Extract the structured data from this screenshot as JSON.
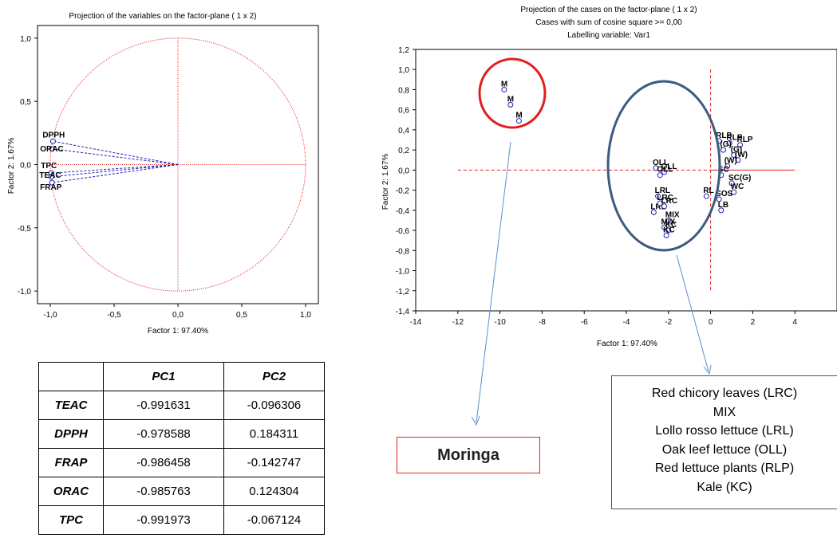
{
  "chart_data": [
    {
      "type": "scatter",
      "title": "Projection of the variables on the factor-plane (  1 x   2)",
      "xlabel": "Factor 1: 97.40%",
      "ylabel": "Factor 2: 1.67%",
      "xlim": [
        -1.1,
        1.1
      ],
      "ylim": [
        -1.1,
        1.1
      ],
      "xticks": [
        "-1,0",
        "-0,5",
        "0,0",
        "0,5",
        "1,0"
      ],
      "yticks": [
        "1,0",
        "0,5",
        "0,0",
        "-0,5",
        "-1,0"
      ],
      "unit_circle": true,
      "points": [
        {
          "label": "DPPH",
          "x": -0.978588,
          "y": 0.184311
        },
        {
          "label": "ORAC",
          "x": -0.985763,
          "y": 0.124304
        },
        {
          "label": "TPC",
          "x": -0.991973,
          "y": -0.067124
        },
        {
          "label": "TEAC",
          "x": -0.991631,
          "y": -0.096306
        },
        {
          "label": "FRAP",
          "x": -0.986458,
          "y": -0.142747
        }
      ]
    },
    {
      "type": "scatter",
      "title": "Projection of the cases on the factor-plane (  1 x   2)",
      "subtitle": "Cases with sum of cosine square >= 0,00",
      "subtitle2": "Labelling variable: Var1",
      "xlabel": "Factor 1: 97.40%",
      "ylabel": "Factor 2: 1.67%",
      "xlim": [
        -14,
        6
      ],
      "ylim": [
        -1.4,
        1.2
      ],
      "xticks": [
        "-14",
        "-12",
        "-10",
        "-8",
        "-6",
        "-4",
        "-2",
        "0",
        "2",
        "4"
      ],
      "yticks": [
        "1,2",
        "1,0",
        "0,8",
        "0,6",
        "0,4",
        "0,2",
        "0,0",
        "-0,2",
        "-0,4",
        "-0,6",
        "-0,8",
        "-1,0",
        "-1,2",
        "-1,4"
      ],
      "points": [
        {
          "label": "M",
          "x": -9.8,
          "y": 0.8
        },
        {
          "label": "M",
          "x": -9.5,
          "y": 0.65
        },
        {
          "label": "M",
          "x": -9.1,
          "y": 0.49
        },
        {
          "label": "OLL",
          "x": -2.6,
          "y": 0.02
        },
        {
          "label": "OLL",
          "x": -2.2,
          "y": -0.02
        },
        {
          "label": "OLL",
          "x": -2.4,
          "y": -0.05
        },
        {
          "label": "LRL",
          "x": -2.5,
          "y": -0.26
        },
        {
          "label": "LRL",
          "x": -2.7,
          "y": -0.42
        },
        {
          "label": "LRC",
          "x": -2.4,
          "y": -0.33
        },
        {
          "label": "LRC",
          "x": -2.2,
          "y": -0.36
        },
        {
          "label": "MIX",
          "x": -2.0,
          "y": -0.5
        },
        {
          "label": "MIX",
          "x": -2.2,
          "y": -0.57
        },
        {
          "label": "KC",
          "x": -2.0,
          "y": -0.6
        },
        {
          "label": "KC",
          "x": -2.1,
          "y": -0.65
        },
        {
          "label": "RLP",
          "x": 0.4,
          "y": 0.29
        },
        {
          "label": "RLP",
          "x": 0.9,
          "y": 0.27
        },
        {
          "label": "RLP",
          "x": 1.4,
          "y": 0.25
        },
        {
          "label": "(G)",
          "x": 0.6,
          "y": 0.2
        },
        {
          "label": "(G)",
          "x": 1.1,
          "y": 0.15
        },
        {
          "label": "(W)",
          "x": 1.3,
          "y": 0.1
        },
        {
          "label": "(W)",
          "x": 0.8,
          "y": 0.04
        },
        {
          "label": "SC",
          "x": 0.5,
          "y": -0.05
        },
        {
          "label": "SC(G)",
          "x": 1.0,
          "y": -0.13
        },
        {
          "label": "WC",
          "x": 1.1,
          "y": -0.22
        },
        {
          "label": "RL",
          "x": -0.2,
          "y": -0.26
        },
        {
          "label": "SOS",
          "x": 0.4,
          "y": -0.29
        },
        {
          "label": "LB",
          "x": 0.5,
          "y": -0.4
        }
      ],
      "annotations": [
        "Moringa"
      ]
    }
  ],
  "table": {
    "headers": [
      "",
      "PC1",
      "PC2"
    ],
    "rows": [
      [
        "TEAC",
        "-0.991631",
        "-0.096306"
      ],
      [
        "DPPH",
        "-0.978588",
        "0.184311"
      ],
      [
        "FRAP",
        "-0.986458",
        "-0.142747"
      ],
      [
        "ORAC",
        "-0.985763",
        "0.124304"
      ],
      [
        "TPC",
        "-0.991973",
        "-0.067124"
      ]
    ]
  },
  "moringa_label": "Moringa",
  "cluster_legend": [
    "Red chicory leaves (LRC)",
    "MIX",
    "Lollo rosso lettuce (LRL)",
    "Oak leef lettuce (OLL)",
    "Red lettuce plants (RLP)",
    "Kale (KC)"
  ],
  "colors": {
    "point": "#1f1fb4",
    "guide": "#e02020",
    "ellipse_blue": "#3d5a80",
    "ellipse_red": "#e02020",
    "arrow": "#5b8ed6"
  }
}
